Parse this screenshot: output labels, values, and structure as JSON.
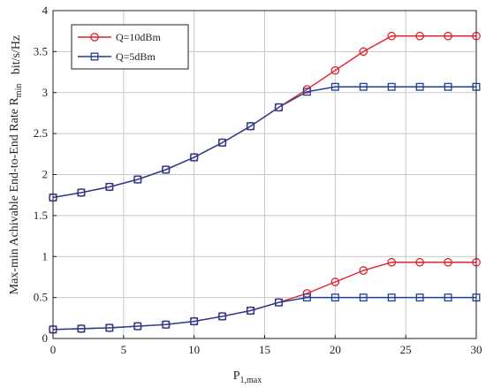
{
  "chart_data": {
    "type": "line",
    "xlabel": "P",
    "xlabel_sub": "1,max",
    "ylabel": "Max-min Achivable End-to-End Rate R",
    "ylabel_sub": "min",
    "unit_label": "bit/s/Hz",
    "xlim": [
      0,
      30
    ],
    "ylim": [
      0,
      4
    ],
    "xticks": [
      0,
      5,
      10,
      15,
      20,
      25,
      30
    ],
    "yticks": [
      0,
      0.5,
      1,
      1.5,
      2,
      2.5,
      3,
      3.5,
      4
    ],
    "grid": true,
    "legend_position": "top-left",
    "x": [
      0,
      2,
      4,
      6,
      8,
      10,
      12,
      14,
      16,
      18,
      20,
      22,
      24,
      26,
      28,
      30
    ],
    "series": [
      {
        "name": "Q=10dBm",
        "color": "#e0232e",
        "marker": "circle",
        "curves": [
          [
            1.72,
            1.78,
            1.85,
            1.94,
            2.06,
            2.21,
            2.39,
            2.59,
            2.82,
            3.04,
            3.27,
            3.5,
            3.69,
            3.69,
            3.69,
            3.69
          ],
          [
            0.11,
            0.12,
            0.13,
            0.15,
            0.17,
            0.21,
            0.27,
            0.34,
            0.44,
            0.55,
            0.69,
            0.83,
            0.93,
            0.93,
            0.93,
            0.93
          ]
        ]
      },
      {
        "name": "Q=5dBm",
        "color": "#1f3f93",
        "marker": "square",
        "curves": [
          [
            1.72,
            1.78,
            1.85,
            1.94,
            2.06,
            2.21,
            2.39,
            2.59,
            2.82,
            3.01,
            3.07,
            3.07,
            3.07,
            3.07,
            3.07,
            3.07
          ],
          [
            0.11,
            0.12,
            0.13,
            0.15,
            0.17,
            0.21,
            0.27,
            0.34,
            0.44,
            0.5,
            0.5,
            0.5,
            0.5,
            0.5,
            0.5,
            0.5
          ]
        ]
      }
    ]
  }
}
